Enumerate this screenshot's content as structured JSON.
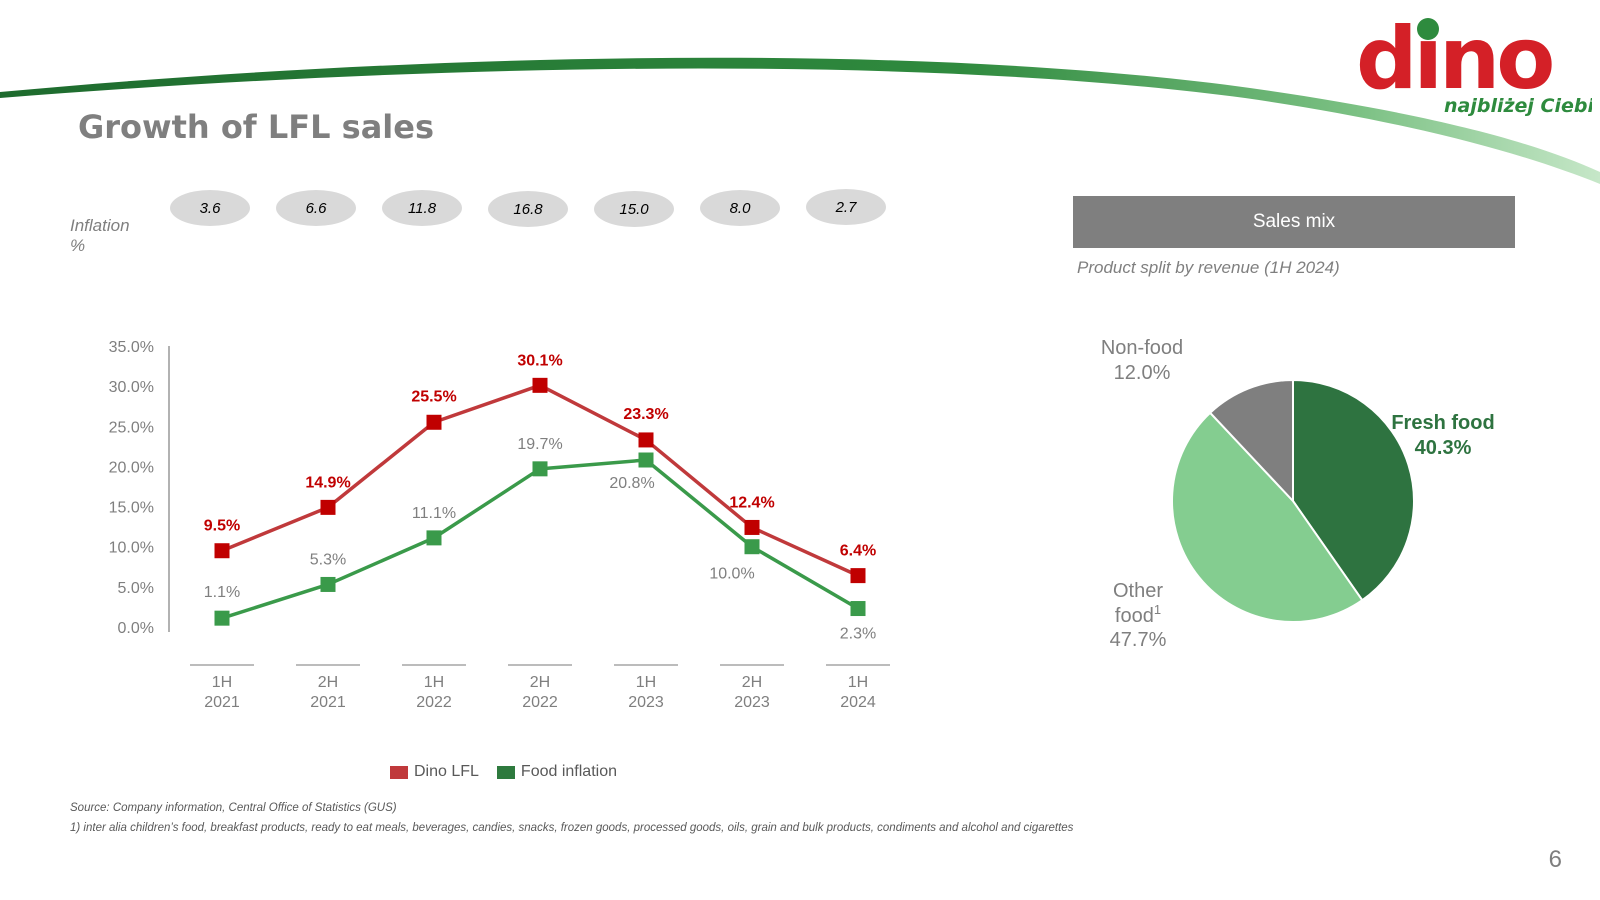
{
  "header": {
    "title": "Growth of LFL sales",
    "logo_text": "dino",
    "logo_tagline": "najbliżej Ciebie"
  },
  "inflation": {
    "label_line1": "Inflation",
    "label_line2": "%",
    "values": [
      "3.6",
      "6.6",
      "11.8",
      "16.8",
      "15.0",
      "8.0",
      "2.7"
    ]
  },
  "legend": {
    "dino": "Dino LFL",
    "food": "Food inflation"
  },
  "sales_mix": {
    "header": "Sales mix",
    "subtitle": "Product split by revenue (1H 2024)"
  },
  "colors": {
    "dino_red": "#c00000",
    "dino_line": "#c0393b",
    "food_green": "#3a9a4a",
    "legend_green": "#2e7a3e",
    "fresh_food": "#2e7340",
    "other_food": "#84cd90",
    "non_food": "#7f7f7f",
    "header_grey": "#7f7f7f",
    "axis_grey": "#7f7f7f"
  },
  "chart_data": [
    {
      "type": "line",
      "categories": [
        [
          "1H",
          "2021"
        ],
        [
          "2H",
          "2021"
        ],
        [
          "1H",
          "2022"
        ],
        [
          "2H",
          "2022"
        ],
        [
          "1H",
          "2023"
        ],
        [
          "2H",
          "2023"
        ],
        [
          "1H",
          "2024"
        ]
      ],
      "y_ticks": [
        "35.0%",
        "30.0%",
        "25.0%",
        "20.0%",
        "15.0%",
        "10.0%",
        "5.0%",
        "0.0%"
      ],
      "ylim": [
        0,
        35
      ],
      "series": [
        {
          "name": "Dino LFL",
          "values": [
            9.5,
            14.9,
            25.5,
            30.1,
            23.3,
            12.4,
            6.4
          ],
          "labels": [
            "9.5%",
            "14.9%",
            "25.5%",
            "30.1%",
            "23.3%",
            "12.4%",
            "6.4%"
          ]
        },
        {
          "name": "Food inflation",
          "values": [
            1.1,
            5.3,
            11.1,
            19.7,
            20.8,
            10.0,
            2.3
          ],
          "labels": [
            "1.1%",
            "5.3%",
            "11.1%",
            "19.7%",
            "20.8%",
            "10.0%",
            "2.3%"
          ]
        }
      ],
      "title": "",
      "xlabel": "",
      "ylabel": "",
      "grid": false,
      "legend": "bottom"
    },
    {
      "type": "pie",
      "slices": [
        {
          "name": "Fresh food",
          "value": 40.3,
          "label": "40.3%"
        },
        {
          "name": "Other food",
          "value": 47.7,
          "label": "47.7%",
          "footnote_mark": "1"
        },
        {
          "name": "Non-food",
          "value": 12.0,
          "label": "12.0%"
        }
      ],
      "title": "Product split by revenue (1H 2024)"
    }
  ],
  "footer": {
    "source": "Source:   Company information, Central Office of Statistics (GUS)",
    "footnote": "1) inter alia children’s food, breakfast products, ready to eat meals, beverages, candies, snacks, frozen goods, processed goods, oils, grain and bulk products, condiments and alcohol and cigarettes",
    "page_number": "6"
  }
}
